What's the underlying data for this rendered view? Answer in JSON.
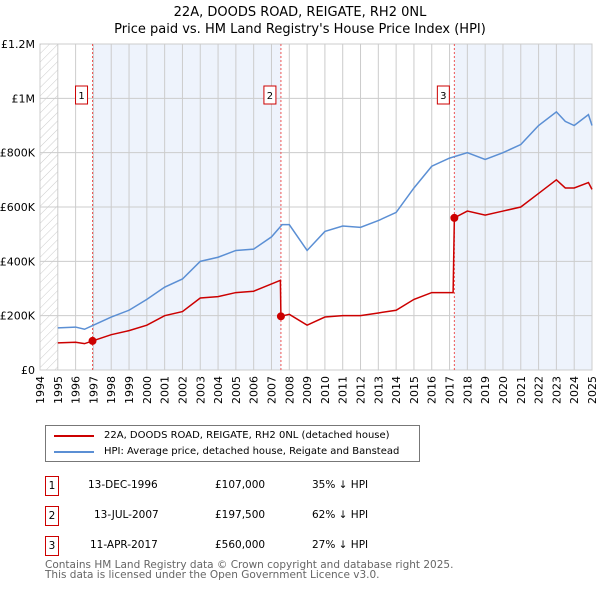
{
  "title": "22A, DOODS ROAD, REIGATE, RH2 0NL",
  "subtitle": "Price paid vs. HM Land Registry's House Price Index (HPI)",
  "chart_data": {
    "type": "line",
    "xlim": [
      1994,
      2025
    ],
    "ylim": [
      0,
      1200000
    ],
    "yticks": [
      0,
      200000,
      400000,
      600000,
      800000,
      1000000,
      1200000
    ],
    "ytick_labels": [
      "£0",
      "£200K",
      "£400K",
      "£600K",
      "£800K",
      "£1M",
      "£1.2M"
    ],
    "xticks": [
      1994,
      1995,
      1996,
      1997,
      1998,
      1999,
      2000,
      2001,
      2002,
      2003,
      2004,
      2005,
      2006,
      2007,
      2008,
      2009,
      2010,
      2011,
      2012,
      2013,
      2014,
      2015,
      2016,
      2017,
      2018,
      2019,
      2020,
      2021,
      2022,
      2023,
      2024,
      2025
    ],
    "colors": {
      "price": "#cc0000",
      "hpi": "#5b8fd4",
      "shade": "#eef3fc"
    },
    "series": [
      {
        "name": "22A, DOODS ROAD, REIGATE, RH2 0NL (detached house)",
        "x": [
          1995,
          1996,
          1996.5,
          1996.95,
          1998,
          1999,
          2000,
          2001,
          2002,
          2003,
          2004,
          2005,
          2006,
          2007.5,
          2007.53,
          2008,
          2009,
          2010,
          2011,
          2012,
          2013,
          2014,
          2015,
          2016,
          2017.2,
          2017.27,
          2018,
          2019,
          2020,
          2021,
          2022,
          2023,
          2023.5,
          2024,
          2024.8,
          2025
        ],
        "y": [
          100000,
          102000,
          97000,
          107000,
          130000,
          145000,
          165000,
          200000,
          215000,
          265000,
          270000,
          285000,
          290000,
          330000,
          197500,
          205000,
          165000,
          195000,
          200000,
          200000,
          210000,
          220000,
          260000,
          285000,
          285000,
          560000,
          585000,
          570000,
          585000,
          600000,
          650000,
          700000,
          670000,
          670000,
          690000,
          665000
        ]
      },
      {
        "name": "HPI: Average price, detached house, Reigate and Banstead",
        "x": [
          1995,
          1996,
          1996.5,
          1997,
          1998,
          1999,
          2000,
          2001,
          2002,
          2003,
          2004,
          2005,
          2006,
          2007,
          2007.6,
          2008,
          2009,
          2010,
          2011,
          2012,
          2013,
          2014,
          2015,
          2016,
          2017,
          2018,
          2019,
          2020,
          2021,
          2022,
          2023,
          2023.5,
          2024,
          2024.8,
          2025
        ],
        "y": [
          155000,
          158000,
          150000,
          165000,
          195000,
          220000,
          260000,
          305000,
          335000,
          400000,
          415000,
          440000,
          445000,
          490000,
          535000,
          535000,
          440000,
          510000,
          530000,
          525000,
          550000,
          580000,
          670000,
          750000,
          780000,
          800000,
          775000,
          800000,
          830000,
          900000,
          950000,
          915000,
          900000,
          940000,
          900000
        ]
      }
    ],
    "sales": [
      {
        "label": "1",
        "x": 1996.95,
        "y": 107000,
        "date": "13-DEC-1996",
        "price": "£107,000",
        "hpi": "35% ↓ HPI"
      },
      {
        "label": "2",
        "x": 2007.53,
        "y": 197500,
        "date": "13-JUL-2007",
        "price": "£197,500",
        "hpi": "62% ↓ HPI"
      },
      {
        "label": "3",
        "x": 2017.27,
        "y": 560000,
        "date": "11-APR-2017",
        "price": "£560,000",
        "hpi": "27% ↓ HPI"
      }
    ]
  },
  "footer": [
    "Contains HM Land Registry data © Crown copyright and database right 2025.",
    "This data is licensed under the Open Government Licence v3.0."
  ]
}
